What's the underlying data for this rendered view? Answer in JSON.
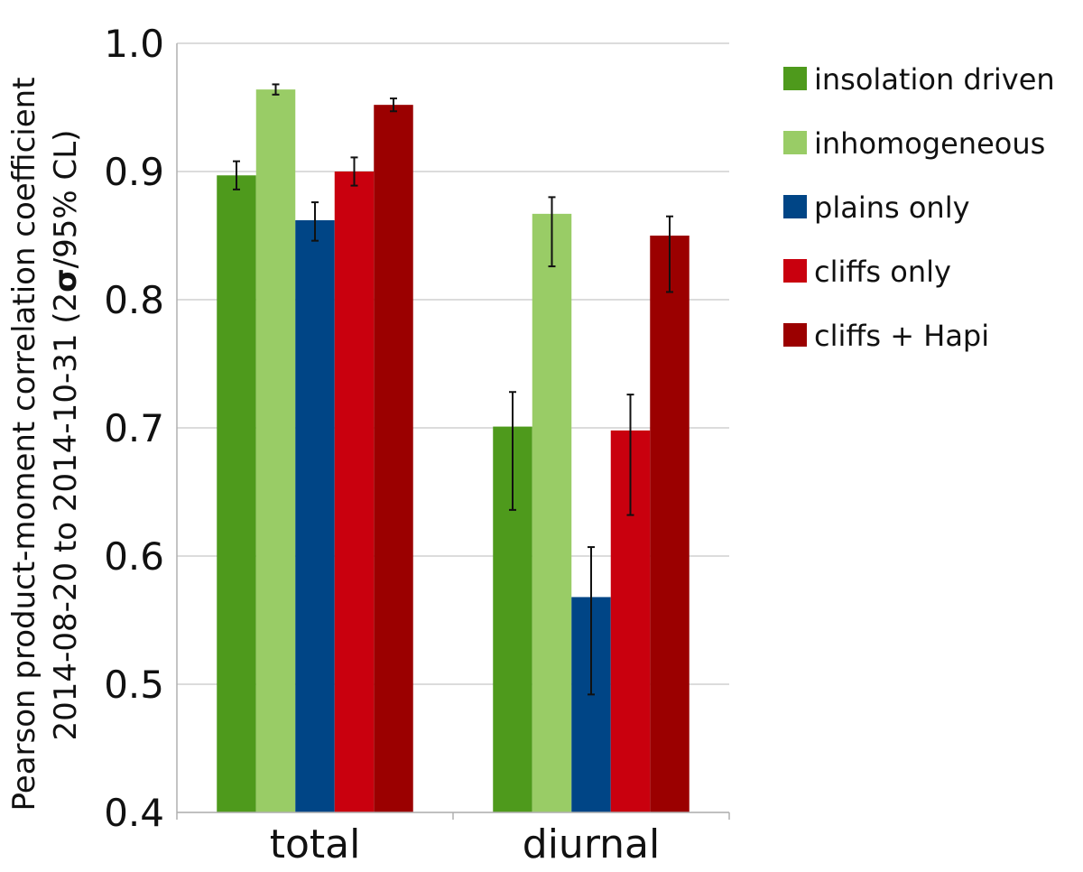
{
  "chart_data": {
    "type": "bar",
    "ylabel_line1": "Pearson product-moment correlation coefficient",
    "ylabel_line2_prefix": "2014-08-20 to 2014-10-31 (2",
    "ylabel_line2_sigma": "σ",
    "ylabel_line2_suffix": "/95% CL)",
    "ylim": [
      0.4,
      1.0
    ],
    "yticks": [
      "0.4",
      "0.5",
      "0.6",
      "0.7",
      "0.8",
      "0.9",
      "1.0"
    ],
    "ytick_values": [
      0.4,
      0.5,
      0.6,
      0.7,
      0.8,
      0.9,
      1.0
    ],
    "grid": true,
    "legend_position": "right",
    "categories": [
      "total",
      "diurnal"
    ],
    "series": [
      {
        "name": "insolation driven",
        "color": "#4e9a1c",
        "values": [
          0.897,
          0.701
        ],
        "err_low": [
          0.886,
          0.636
        ],
        "err_high": [
          0.908,
          0.728
        ]
      },
      {
        "name": "inhomogeneous",
        "color": "#99cc66",
        "values": [
          0.964,
          0.867
        ],
        "err_low": [
          0.96,
          0.826
        ],
        "err_high": [
          0.968,
          0.88
        ]
      },
      {
        "name": "plains only",
        "color": "#004586",
        "values": [
          0.862,
          0.568
        ],
        "err_low": [
          0.846,
          0.492
        ],
        "err_high": [
          0.876,
          0.607
        ]
      },
      {
        "name": "cliffs only",
        "color": "#c9000e",
        "values": [
          0.9,
          0.698
        ],
        "err_low": [
          0.889,
          0.632
        ],
        "err_high": [
          0.911,
          0.726
        ]
      },
      {
        "name": "cliffs + Hapi",
        "color": "#9b0000",
        "values": [
          0.952,
          0.85
        ],
        "err_low": [
          0.947,
          0.806
        ],
        "err_high": [
          0.957,
          0.865
        ]
      }
    ]
  }
}
